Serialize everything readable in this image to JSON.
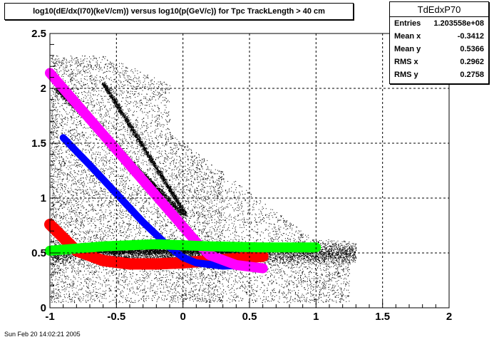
{
  "title": "log10(dE/dx(I70)(keV/cm)) versus log10(p(GeV/c)) for Tpc TrackLength > 40 cm",
  "stats": {
    "name": "TdEdxP70",
    "rows": [
      {
        "label": "Entries",
        "value": "1.203558e+08"
      },
      {
        "label": "Mean x",
        "value": "-0.3412"
      },
      {
        "label": "Mean y",
        "value": "0.5366"
      },
      {
        "label": "RMS x",
        "value": "0.2962"
      },
      {
        "label": "RMS y",
        "value": "0.2758"
      }
    ]
  },
  "datestamp": "Sun Feb 20 14:02:21 2005",
  "colors": {
    "background": "#ffffff",
    "scatter": "#000000",
    "red": "#ff0000",
    "blue": "#0000ff",
    "magenta": "#ff00ff",
    "green": "#00ff00",
    "grid": "#000000"
  },
  "chart_data": {
    "type": "scatter",
    "title": "log10(dE/dx(I70)(keV/cm)) versus log10(p(GeV/c)) for Tpc TrackLength > 40 cm",
    "xlabel": "",
    "ylabel": "",
    "xlim": [
      -1,
      2
    ],
    "ylim": [
      0,
      2.5
    ],
    "grid": true,
    "x_ticks": [
      {
        "value": -1,
        "label": "-1"
      },
      {
        "value": -0.5,
        "label": "-0.5"
      },
      {
        "value": 0,
        "label": "0"
      },
      {
        "value": 0.5,
        "label": "0.5"
      },
      {
        "value": 1,
        "label": "1"
      },
      {
        "value": 1.5,
        "label": "1.5"
      },
      {
        "value": 2,
        "label": "2"
      }
    ],
    "y_ticks": [
      {
        "value": 0,
        "label": "0"
      },
      {
        "value": 0.5,
        "label": "0.5"
      },
      {
        "value": 1,
        "label": "1"
      },
      {
        "value": 1.5,
        "label": "1.5"
      },
      {
        "value": 2,
        "label": "2"
      },
      {
        "value": 2.5,
        "label": "2.5"
      }
    ],
    "series": [
      {
        "color": "#ff0000",
        "x": [
          -1.0,
          -0.8,
          -0.6,
          -0.4,
          -0.2,
          0.0,
          0.2,
          0.4,
          0.6
        ],
        "y": [
          0.76,
          0.52,
          0.43,
          0.4,
          0.4,
          0.41,
          0.43,
          0.45,
          0.47
        ]
      },
      {
        "color": "#0000ff",
        "x": [
          -0.9,
          -0.7,
          -0.5,
          -0.3,
          -0.1,
          0.0,
          0.1,
          0.3,
          0.5
        ],
        "y": [
          1.55,
          1.3,
          1.04,
          0.78,
          0.55,
          0.46,
          0.41,
          0.38,
          0.39
        ]
      },
      {
        "color": "#ff00ff",
        "x": [
          -1.0,
          -0.8,
          -0.6,
          -0.4,
          -0.2,
          0.0,
          0.1,
          0.2,
          0.4,
          0.6
        ],
        "y": [
          2.14,
          1.86,
          1.58,
          1.3,
          1.02,
          0.74,
          0.6,
          0.48,
          0.39,
          0.36
        ]
      },
      {
        "color": "#00ff00",
        "x": [
          -1.0,
          -0.6,
          -0.2,
          0.2,
          0.6,
          1.0
        ],
        "y": [
          0.52,
          0.56,
          0.58,
          0.56,
          0.55,
          0.55
        ]
      }
    ]
  }
}
